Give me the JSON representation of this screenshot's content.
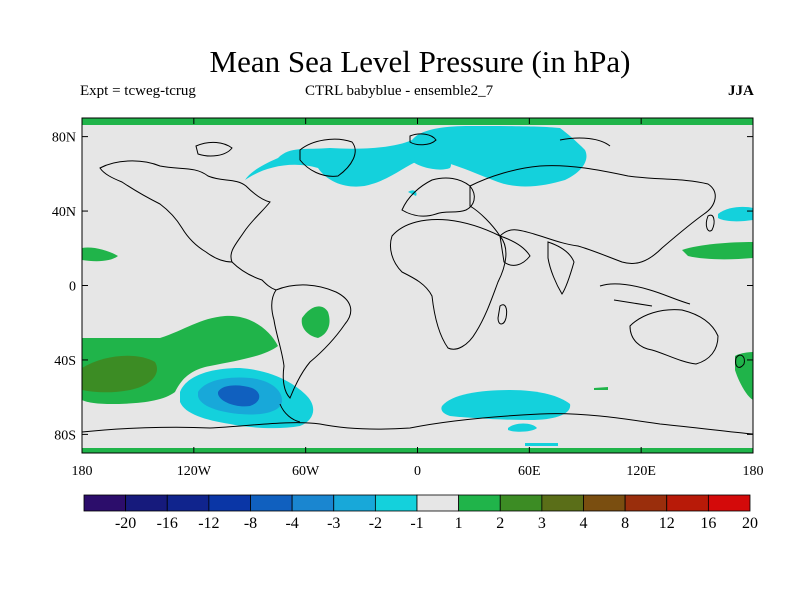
{
  "title": "Mean Sea Level Pressure (in hPa)",
  "subtitle_left": "Expt = tcweg-tcrug",
  "subtitle_center": "CTRL babyblue - ensemble2_7",
  "subtitle_right": "JJA",
  "chart_data": {
    "type": "contour-map",
    "variable": "Mean Sea Level Pressure difference",
    "units": "hPa",
    "season": "JJA",
    "lat_range": [
      -90,
      90
    ],
    "lon_range": [
      -180,
      180
    ],
    "x_ticks": [
      "180",
      "120W",
      "60W",
      "0",
      "60E",
      "120E",
      "180"
    ],
    "y_ticks": [
      "80N",
      "40N",
      "0",
      "40S",
      "80S"
    ],
    "colorbar": {
      "labels": [
        "-20",
        "-16",
        "-12",
        "-8",
        "-4",
        "-3",
        "-2",
        "-1",
        "1",
        "2",
        "3",
        "4",
        "8",
        "12",
        "16",
        "20"
      ],
      "colors": [
        "#2c0d6b",
        "#161a7c",
        "#10248d",
        "#0a36a6",
        "#1060bf",
        "#1a86d0",
        "#18a8d9",
        "#14d1dc",
        "#e6e6e6",
        "#20b44a",
        "#3c8c24",
        "#5a6e18",
        "#7a4e10",
        "#9a2e0c",
        "#b81a08",
        "#d40a0a"
      ]
    },
    "regions": [
      {
        "name": "arctic-negative",
        "category": "-2 to -1",
        "center_lon": 10,
        "center_lat": 75
      },
      {
        "name": "south-pacific-positive",
        "category": "1 to 2",
        "center_lon": -140,
        "center_lat": -40
      },
      {
        "name": "south-pacific-strong-positive",
        "category": "2 to 3",
        "center_lon": -165,
        "center_lat": -45
      },
      {
        "name": "amundsen-sea-low",
        "category": "-4 to -1",
        "center_lon": -100,
        "center_lat": -57
      },
      {
        "name": "south-atlantic-positive",
        "category": "1 to 2",
        "center_lon": -40,
        "center_lat": -20
      },
      {
        "name": "southern-ocean-negative",
        "category": "-2 to -1",
        "center_lon": 40,
        "center_lat": -63
      },
      {
        "name": "north-pacific-positive",
        "category": "1 to 2",
        "center_lon": 160,
        "center_lat": 18
      },
      {
        "name": "japan-negative",
        "category": "-2 to -1",
        "center_lon": 172,
        "center_lat": 38
      },
      {
        "name": "hawaii-positive",
        "category": "1 to 2",
        "center_lon": -172,
        "center_lat": 17
      }
    ]
  }
}
